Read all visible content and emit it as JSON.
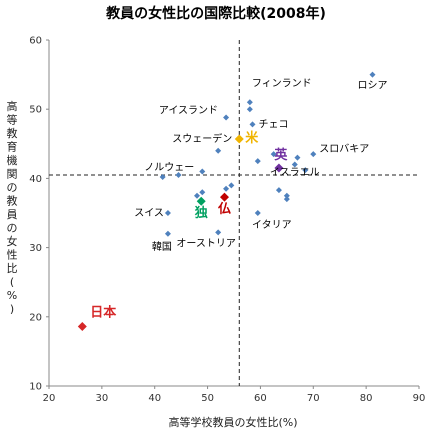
{
  "chart_data": {
    "type": "scatter",
    "title": "教員の女性比の国際比較(2008年)",
    "xlabel": "高等学校教員の女性比(%)",
    "ylabel": "高等教育機関の教員の女性比(%)",
    "xlim": [
      20,
      90
    ],
    "ylim": [
      10,
      60
    ],
    "x_ticks": [
      20,
      30,
      40,
      50,
      60,
      70,
      80,
      90
    ],
    "y_ticks": [
      10,
      20,
      30,
      40,
      50,
      60
    ],
    "reference_lines": {
      "x": 56,
      "y": 40.5
    },
    "grid": false,
    "colors": {
      "default": "#4f81bd",
      "japan": "#d62728",
      "usa": "#f0b400",
      "uk": "#7030a0",
      "germany": "#00a060",
      "france": "#c00000"
    },
    "points": [
      {
        "x": 81.2,
        "y": 55.0,
        "label": "ロシア"
      },
      {
        "x": 58.0,
        "y": 51.0,
        "label": "フィンランド"
      },
      {
        "x": 58.0,
        "y": 50.0,
        "label": ""
      },
      {
        "x": 53.5,
        "y": 48.8,
        "label": "アイスランド"
      },
      {
        "x": 58.5,
        "y": 47.8,
        "label": "チェコ"
      },
      {
        "x": 52.0,
        "y": 44.0,
        "label": ""
      },
      {
        "x": 62.5,
        "y": 43.5,
        "label": ""
      },
      {
        "x": 67.0,
        "y": 43.0,
        "label": ""
      },
      {
        "x": 70.0,
        "y": 43.5,
        "label": "スロバキア"
      },
      {
        "x": 59.5,
        "y": 42.5,
        "label": ""
      },
      {
        "x": 66.5,
        "y": 42.0,
        "label": "イスラエル"
      },
      {
        "x": 68.5,
        "y": 41.2,
        "label": ""
      },
      {
        "x": 49.0,
        "y": 41.0,
        "label": "ノルウェー"
      },
      {
        "x": 41.5,
        "y": 40.2,
        "label": ""
      },
      {
        "x": 44.5,
        "y": 40.5,
        "label": ""
      },
      {
        "x": 54.5,
        "y": 39.0,
        "label": ""
      },
      {
        "x": 48.0,
        "y": 37.5,
        "label": ""
      },
      {
        "x": 49.0,
        "y": 38.0,
        "label": ""
      },
      {
        "x": 53.5,
        "y": 38.5,
        "label": ""
      },
      {
        "x": 63.5,
        "y": 38.3,
        "label": ""
      },
      {
        "x": 65.0,
        "y": 37.5,
        "label": ""
      },
      {
        "x": 65.0,
        "y": 37.0,
        "label": ""
      },
      {
        "x": 42.5,
        "y": 35.0,
        "label": "スイス"
      },
      {
        "x": 42.5,
        "y": 32.0,
        "label": "韓国"
      },
      {
        "x": 59.5,
        "y": 35.0,
        "label": "イタリア"
      },
      {
        "x": 52.0,
        "y": 32.2,
        "label": "オーストリア"
      }
    ],
    "highlighted": [
      {
        "x": 26.3,
        "y": 18.6,
        "label": "日本",
        "color_key": "japan"
      },
      {
        "x": 56.0,
        "y": 45.7,
        "label": "米",
        "color_key": "usa"
      },
      {
        "x": 63.5,
        "y": 41.5,
        "label": "英",
        "color_key": "uk"
      },
      {
        "x": 48.8,
        "y": 36.7,
        "label": "独",
        "color_key": "germany"
      },
      {
        "x": 53.2,
        "y": 37.3,
        "label": "仏",
        "color_key": "france"
      }
    ],
    "unlabeled_highlight": [
      {
        "x": 55.8,
        "y": 45.7,
        "label": "スウェーデン"
      }
    ]
  }
}
